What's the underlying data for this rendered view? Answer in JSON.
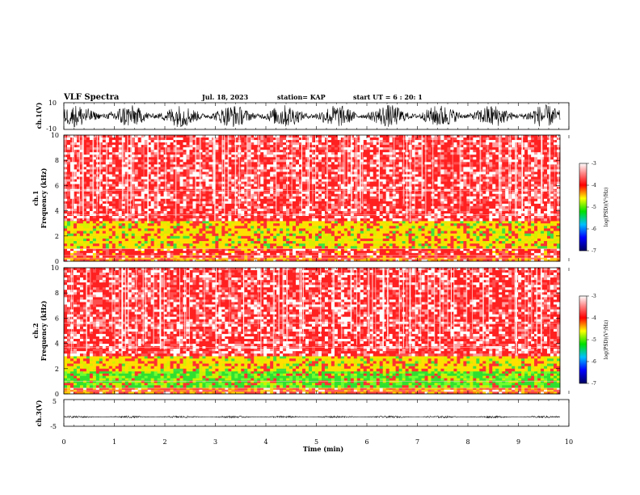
{
  "header": {
    "title": "VLF Spectra",
    "date": "Jul. 18, 2023",
    "station": "station= KAP",
    "start": "start UT =  6 : 20: 1"
  },
  "colors": {
    "spec_low": "#e8c000",
    "spec_mid": "#ff2020",
    "spec_green": "#30e030",
    "colorbar": [
      "#000080",
      "#0000ff",
      "#00ffff",
      "#00ff00",
      "#ffff00",
      "#ff0000",
      "#ffffff"
    ]
  },
  "chart_data": [
    {
      "id": "ch1-wave",
      "type": "line",
      "ylabel": "ch.1(V)",
      "ylim": [
        -10,
        10
      ],
      "yticks": [
        "10",
        "-10"
      ],
      "xlim": [
        0,
        10
      ],
      "description": "broadband waveform noise filling most of the range"
    },
    {
      "id": "ch1-spec",
      "type": "heatmap",
      "ylabel": "ch.1",
      "ylabel2": "Frequency (kHz)",
      "ylim": [
        0,
        10
      ],
      "yticks": [
        "0",
        "2",
        "4",
        "6",
        "8",
        "10"
      ],
      "xlim": [
        0,
        10
      ],
      "bands": [
        {
          "from_khz": 0,
          "to_khz": 0.3,
          "level": "low"
        },
        {
          "from_khz": 0.3,
          "to_khz": 1.0,
          "level": "mid"
        },
        {
          "from_khz": 1.0,
          "to_khz": 3.2,
          "level": "yellow-green"
        },
        {
          "from_khz": 3.2,
          "to_khz": 10,
          "level": "red-white"
        }
      ],
      "colorbar": {
        "label": "log(PSD)(V²/Hz)",
        "ticks": [
          "-3",
          "-4",
          "-5",
          "-6",
          "-7"
        ],
        "range": [
          -7,
          -3
        ]
      }
    },
    {
      "id": "ch2-spec",
      "type": "heatmap",
      "ylabel": "ch.2",
      "ylabel2": "Frequency (kHz)",
      "ylim": [
        0,
        10
      ],
      "yticks": [
        "0",
        "2",
        "4",
        "6",
        "8",
        "10"
      ],
      "xlim": [
        0,
        10
      ],
      "bands": [
        {
          "from_khz": 0,
          "to_khz": 0.5,
          "level": "low"
        },
        {
          "from_khz": 0.5,
          "to_khz": 1.8,
          "level": "green"
        },
        {
          "from_khz": 1.8,
          "to_khz": 3.0,
          "level": "yellow-green"
        },
        {
          "from_khz": 3.0,
          "to_khz": 10,
          "level": "red-white"
        }
      ],
      "colorbar": {
        "label": "log(PSD)(V²/Hz)",
        "ticks": [
          "-3",
          "-4",
          "-5",
          "-6",
          "-7"
        ],
        "range": [
          -7,
          -3
        ]
      }
    },
    {
      "id": "ch3-wave",
      "type": "line",
      "ylabel": "ch.3(V)",
      "ylim": [
        -5,
        5
      ],
      "yticks": [
        "5",
        "-5"
      ],
      "xlim": [
        0,
        10
      ],
      "baseline_v": -1.5,
      "description": "thin noisy band near -1.5 V"
    }
  ],
  "xaxis": {
    "label": "Time (min)",
    "ticks": [
      "0",
      "1",
      "2",
      "3",
      "4",
      "5",
      "6",
      "7",
      "8",
      "9",
      "10"
    ],
    "range": [
      0,
      10
    ]
  }
}
